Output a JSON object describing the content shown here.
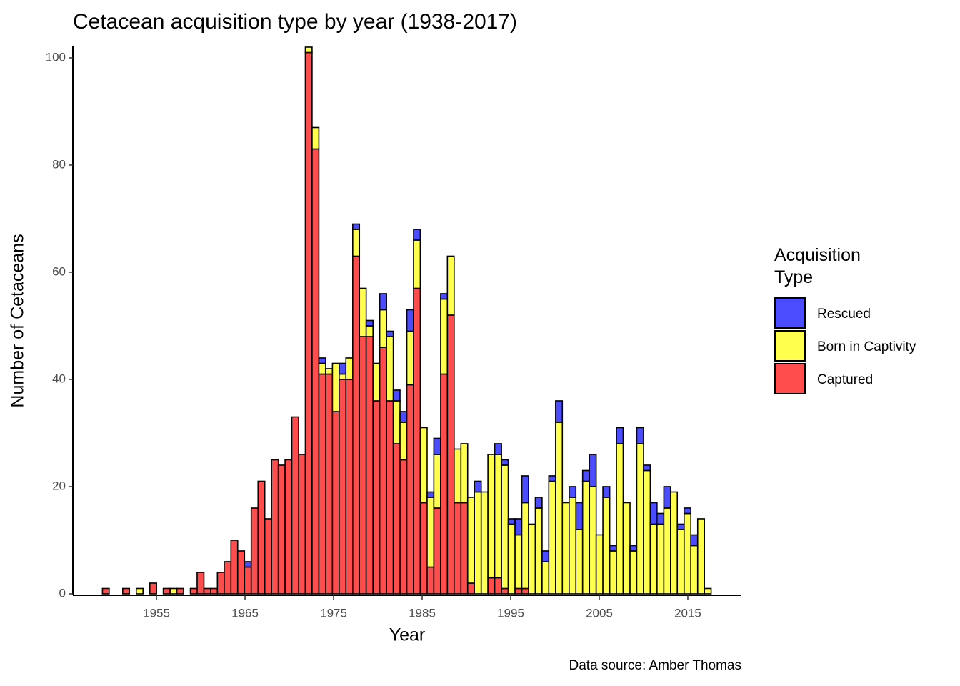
{
  "chart_data": {
    "type": "histogram",
    "title": "Cetacean acquisition type by year (1938-2017)",
    "x_label": "Year",
    "y_label": "Number of Cetaceans",
    "caption": "Data source: Amber Thomas",
    "legend_title": "Acquisition\nType",
    "legend_position": "right",
    "bins": [
      1948.9,
      1949.66,
      1950.43,
      1951.19,
      1951.95,
      1952.72,
      1953.48,
      1954.25,
      1955.01,
      1955.77,
      1956.54,
      1957.3,
      1958.06,
      1958.83,
      1959.59,
      1960.36,
      1961.12,
      1961.88,
      1962.65,
      1963.41,
      1964.17,
      1964.94,
      1965.7,
      1966.47,
      1967.23,
      1967.99,
      1968.76,
      1969.52,
      1970.28,
      1971.05,
      1971.81,
      1972.57,
      1973.34,
      1974.1,
      1974.87,
      1975.63,
      1976.39,
      1977.16,
      1977.92,
      1978.68,
      1979.45,
      1980.21,
      1980.98,
      1981.74,
      1982.5,
      1983.27,
      1984.03,
      1984.79,
      1985.56,
      1986.32,
      1987.09,
      1987.85,
      1988.61,
      1989.38,
      1990.14,
      1990.9,
      1991.67,
      1992.43,
      1993.19,
      1993.96,
      1994.72,
      1995.49,
      1996.25,
      1997.01,
      1997.78,
      1998.54,
      1999.3,
      2000.07,
      2000.83,
      2001.6,
      2002.36,
      2003.12,
      2003.89,
      2004.65,
      2005.41,
      2006.18,
      2006.94,
      2007.7,
      2008.47,
      2009.23,
      2010.0,
      2010.76,
      2011.52,
      2012.29,
      2013.05,
      2013.81,
      2014.58,
      2015.34,
      2016.11,
      2016.87,
      2017.63
    ],
    "series": [
      {
        "name": "Rescued",
        "color": "#4b4bff",
        "values": [
          0,
          0,
          0,
          0,
          0,
          0,
          0,
          0,
          0,
          0,
          0,
          0,
          0,
          0,
          0,
          0,
          0,
          0,
          0,
          0,
          0,
          1,
          0,
          0,
          0,
          0,
          0,
          0,
          0,
          0,
          0,
          0,
          1,
          0,
          0,
          2,
          0,
          1,
          0,
          1,
          0,
          3,
          1,
          2,
          2,
          4,
          2,
          0,
          1,
          3,
          1,
          0,
          0,
          0,
          0,
          2,
          0,
          0,
          2,
          1,
          1,
          3,
          5,
          0,
          2,
          2,
          1,
          4,
          0,
          2,
          5,
          2,
          6,
          0,
          2,
          1,
          3,
          0,
          1,
          3,
          1,
          4,
          2,
          4,
          0,
          1,
          1,
          2,
          0,
          0
        ]
      },
      {
        "name": "Born in Captivity",
        "color": "#ffff4d",
        "values": [
          0,
          0,
          0,
          0,
          0,
          1,
          0,
          0,
          0,
          0,
          1,
          0,
          0,
          0,
          0,
          0,
          0,
          0,
          0,
          0,
          0,
          0,
          0,
          0,
          0,
          0,
          0,
          0,
          0,
          0,
          1,
          4,
          2,
          1,
          9,
          1,
          4,
          5,
          9,
          2,
          7,
          7,
          12,
          8,
          7,
          10,
          9,
          14,
          13,
          10,
          14,
          11,
          10,
          11,
          16,
          19,
          19,
          23,
          23,
          23,
          13,
          10,
          16,
          13,
          16,
          6,
          21,
          32,
          17,
          18,
          12,
          21,
          20,
          11,
          18,
          8,
          28,
          17,
          8,
          28,
          23,
          13,
          13,
          16,
          19,
          12,
          15,
          9,
          14,
          1
        ]
      },
      {
        "name": "Captured",
        "color": "#ff4d4d",
        "values": [
          1,
          0,
          0,
          1,
          0,
          0,
          0,
          2,
          0,
          1,
          0,
          1,
          0,
          1,
          4,
          1,
          1,
          4,
          6,
          10,
          8,
          5,
          16,
          21,
          14,
          25,
          24,
          25,
          33,
          26,
          101,
          83,
          41,
          41,
          34,
          40,
          40,
          63,
          48,
          48,
          36,
          46,
          36,
          28,
          25,
          39,
          57,
          17,
          5,
          16,
          41,
          52,
          17,
          17,
          2,
          0,
          0,
          3,
          3,
          1,
          0,
          1,
          1,
          0,
          0,
          0,
          0,
          0,
          0,
          0,
          0,
          0,
          0,
          0,
          0,
          0,
          0,
          0,
          0,
          0,
          0,
          0,
          0,
          0,
          0,
          0,
          0,
          0,
          0,
          0
        ]
      }
    ],
    "stack_order": [
      "Captured",
      "Born in Captivity",
      "Rescued"
    ],
    "xlim": [
      1945.56,
      2021.05
    ],
    "xticks": [
      1955,
      1965,
      1975,
      1985,
      1995,
      2005,
      2015
    ],
    "ylim": [
      -0.27,
      102.13
    ],
    "yticks": [
      0,
      20,
      40,
      60,
      80,
      100
    ],
    "grid": false
  }
}
